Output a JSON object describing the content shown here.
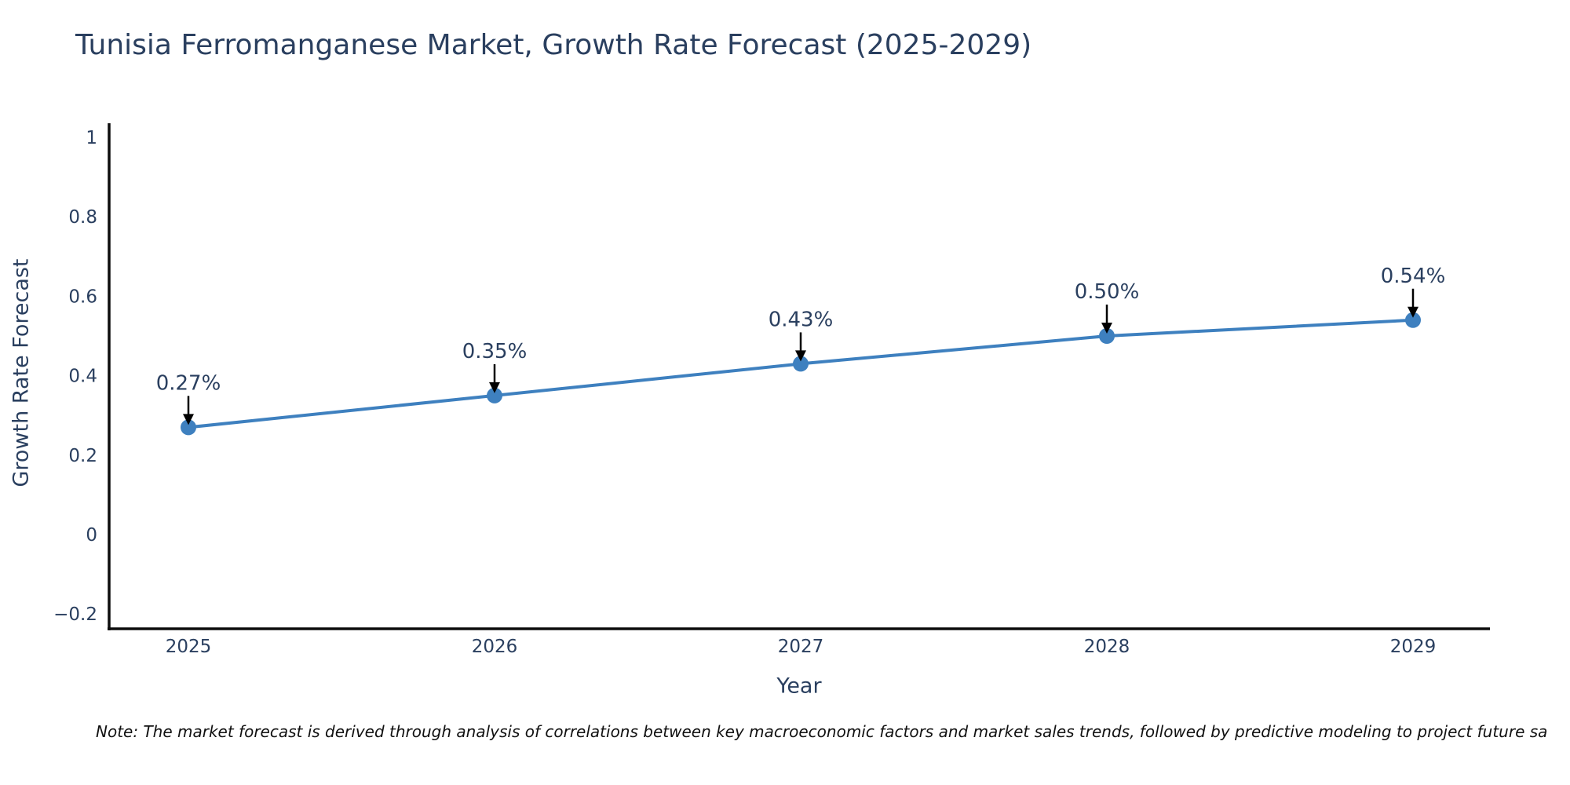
{
  "note": "Note: The market forecast is derived through analysis of correlations between key macroeconomic factors and market sales trends, followed by predictive modeling to project future sa",
  "chart_data": {
    "type": "line",
    "title": "Tunisia Ferromanganese Market, Growth Rate Forecast (2025-2029)",
    "xlabel": "Year",
    "ylabel": "Growth Rate Forecast",
    "categories": [
      "2025",
      "2026",
      "2027",
      "2028",
      "2029"
    ],
    "values": [
      0.27,
      0.35,
      0.43,
      0.5,
      0.54
    ],
    "point_labels": [
      "0.27%",
      "0.35%",
      "0.43%",
      "0.50%",
      "0.54%"
    ],
    "yticks": [
      1,
      0.8,
      0.6,
      0.4,
      0.2,
      0,
      -0.2
    ],
    "ytick_labels": [
      "1",
      "0.8",
      "0.6",
      "0.4",
      "0.2",
      "0",
      "−0.2"
    ],
    "ylim": [
      -0.2,
      1
    ],
    "grid": false,
    "legend": "none",
    "colors": {
      "line": "#3e80bf",
      "marker": "#3e80bf",
      "axis": "#0d0d0d",
      "text": "#2a3f5f",
      "annotation_text": "#2a3f5f",
      "arrow": "#000000",
      "background": "#ffffff"
    }
  }
}
